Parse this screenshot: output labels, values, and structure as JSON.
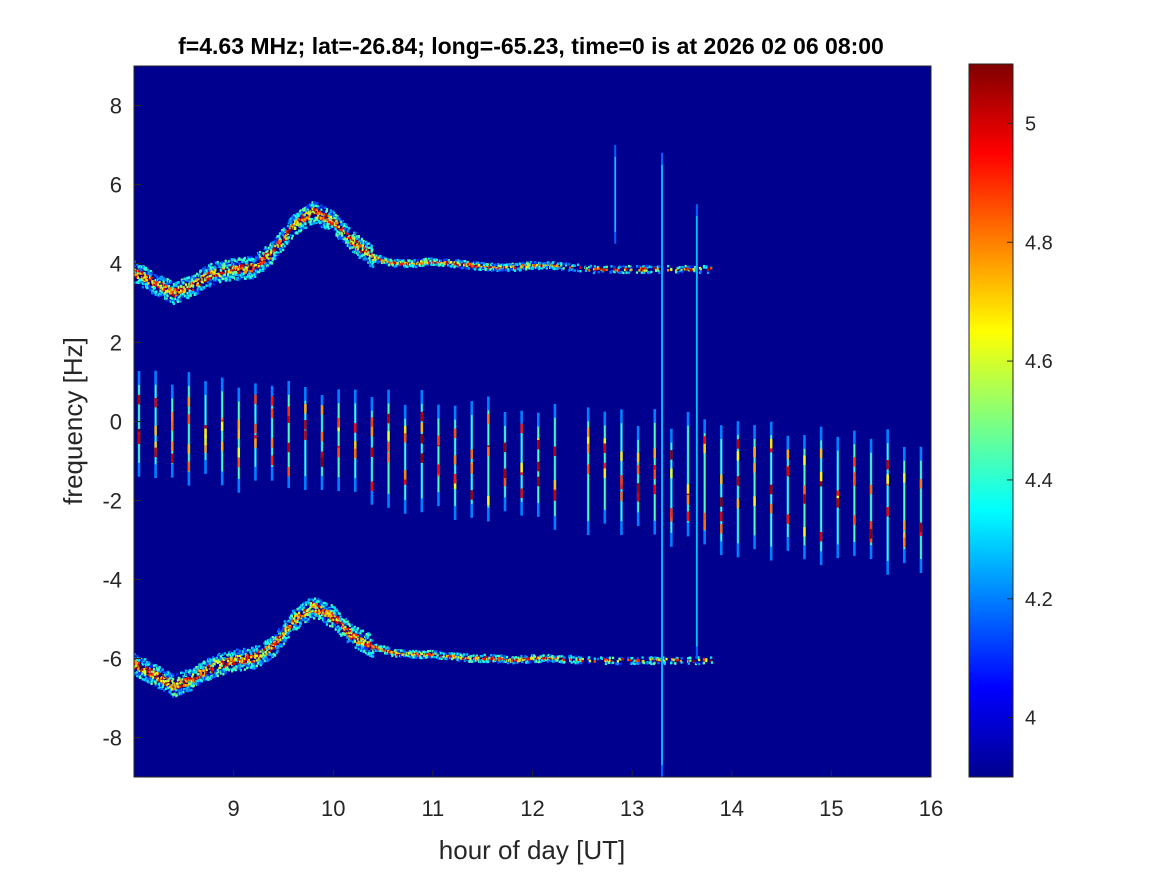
{
  "chart_data": {
    "type": "heatmap",
    "title": "f=4.63 MHz;  lat=-26.84; long=-65.23, time=0 is at 2026 02 06 08:00",
    "xlabel": "hour of day [UT]",
    "ylabel": "frequency [Hz]",
    "xlim": [
      8,
      16
    ],
    "ylim": [
      -9,
      9
    ],
    "xticks": [
      9,
      10,
      11,
      12,
      13,
      14,
      15,
      16
    ],
    "yticks": [
      -8,
      -6,
      -4,
      -2,
      0,
      2,
      4,
      6,
      8
    ],
    "colorbar": {
      "colormap": "jet",
      "range": [
        3.9,
        5.1
      ],
      "ticks": [
        4,
        4.2,
        4.4,
        4.6,
        4.8,
        5
      ]
    },
    "background_value": 3.9,
    "traces": [
      {
        "name": "upper echo",
        "points": [
          [
            8.0,
            3.8
          ],
          [
            8.2,
            3.5
          ],
          [
            8.4,
            3.25
          ],
          [
            8.6,
            3.45
          ],
          [
            8.8,
            3.75
          ],
          [
            9.0,
            3.85
          ],
          [
            9.2,
            3.9
          ],
          [
            9.4,
            4.3
          ],
          [
            9.6,
            4.95
          ],
          [
            9.8,
            5.3
          ],
          [
            10.0,
            5.05
          ],
          [
            10.2,
            4.55
          ],
          [
            10.4,
            4.15
          ],
          [
            10.6,
            4.0
          ],
          [
            10.8,
            4.0
          ],
          [
            11.0,
            4.05
          ],
          [
            11.2,
            4.0
          ],
          [
            11.4,
            3.95
          ],
          [
            11.6,
            3.9
          ],
          [
            11.8,
            3.9
          ],
          [
            12.0,
            3.95
          ],
          [
            12.2,
            3.95
          ],
          [
            12.6,
            3.85
          ],
          [
            13.0,
            3.85
          ],
          [
            13.4,
            3.85
          ],
          [
            13.8,
            3.85
          ]
        ]
      },
      {
        "name": "lower echo",
        "points": [
          [
            8.0,
            -6.15
          ],
          [
            8.2,
            -6.4
          ],
          [
            8.4,
            -6.7
          ],
          [
            8.6,
            -6.5
          ],
          [
            8.8,
            -6.2
          ],
          [
            9.0,
            -6.05
          ],
          [
            9.2,
            -6.0
          ],
          [
            9.4,
            -5.7
          ],
          [
            9.6,
            -5.05
          ],
          [
            9.8,
            -4.7
          ],
          [
            10.0,
            -4.95
          ],
          [
            10.2,
            -5.45
          ],
          [
            10.4,
            -5.7
          ],
          [
            10.6,
            -5.85
          ],
          [
            10.8,
            -5.9
          ],
          [
            11.0,
            -5.9
          ],
          [
            11.2,
            -5.95
          ],
          [
            11.4,
            -6.0
          ],
          [
            11.6,
            -6.0
          ],
          [
            11.8,
            -6.05
          ],
          [
            12.0,
            -6.0
          ],
          [
            12.2,
            -6.0
          ],
          [
            12.6,
            -6.05
          ],
          [
            13.0,
            -6.05
          ],
          [
            13.4,
            -6.05
          ],
          [
            13.8,
            -6.05
          ]
        ]
      }
    ],
    "vertical_streaks": {
      "start_hour": 8.05,
      "end_hour": 15.9,
      "spacing_hours": 0.167,
      "gap_hours": [
        12.25,
        12.45
      ],
      "band_top_start": 1.2,
      "band_top_end": -0.5,
      "band_bottom_start": -1.3,
      "band_bottom_end": -3.8
    },
    "interference_spikes": [
      {
        "hour": 12.83,
        "from": 4.5,
        "to": 7.0
      },
      {
        "hour": 13.3,
        "from": -9.0,
        "to": 6.8
      },
      {
        "hour": 13.65,
        "from": -6.0,
        "to": 5.5
      }
    ]
  }
}
